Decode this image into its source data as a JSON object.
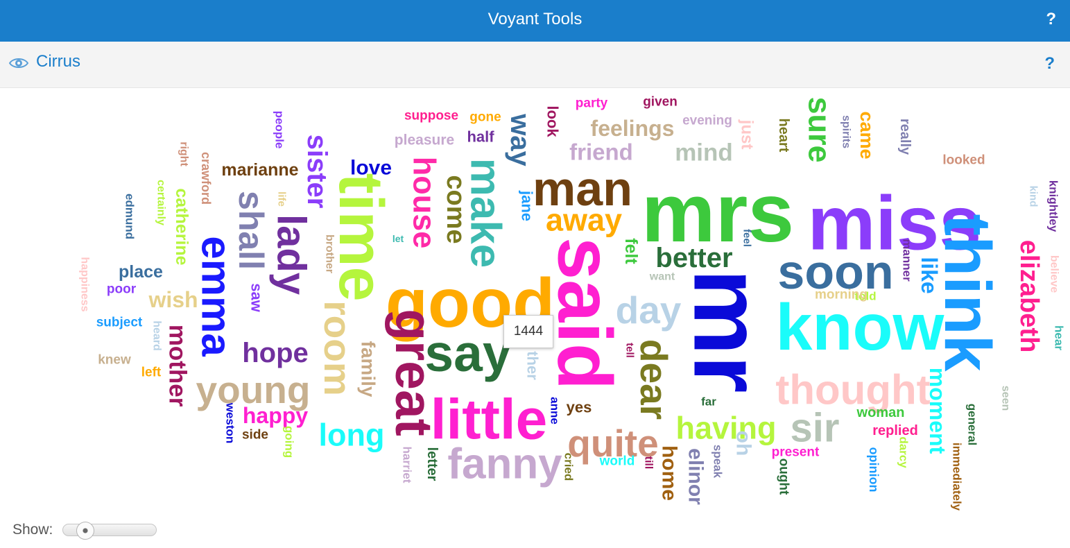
{
  "app": {
    "title": "Voyant Tools",
    "help": "?"
  },
  "panel": {
    "title": "Cirrus",
    "help": "?",
    "icon": "eye-icon"
  },
  "tooltip": "1444",
  "controls": {
    "show_label": "Show:"
  },
  "colors": {
    "header_bg": "#1a7ecb",
    "panel_bg": "#f4f4f4",
    "accent": "#1a7ecb"
  },
  "words": [
    {
      "text": "mrs",
      "color": "#3dc93d"
    },
    {
      "text": "miss",
      "color": "#8b3dfa"
    },
    {
      "text": "mr",
      "color": "#0a0ad8"
    },
    {
      "text": "said",
      "color": "#ff1fd0"
    },
    {
      "text": "good",
      "color": "#ffaa00"
    },
    {
      "text": "know",
      "color": "#1afcfa"
    },
    {
      "text": "think",
      "color": "#1a9cff"
    },
    {
      "text": "soon",
      "color": "#3a6e9e"
    },
    {
      "text": "man",
      "color": "#6e4010"
    },
    {
      "text": "time",
      "color": "#b5f53d"
    },
    {
      "text": "little",
      "color": "#ff1fd0"
    },
    {
      "text": "say",
      "color": "#2a6e3a"
    },
    {
      "text": "great",
      "color": "#a01660"
    },
    {
      "text": "make",
      "color": "#3dbab0"
    },
    {
      "text": "thought",
      "color": "#ffc7c7"
    },
    {
      "text": "fanny",
      "color": "#c6a8cf"
    },
    {
      "text": "emma",
      "color": "#1a1aff"
    },
    {
      "text": "lady",
      "color": "#70309e"
    },
    {
      "text": "shall",
      "color": "#8080b0"
    },
    {
      "text": "young",
      "color": "#c7b08f"
    },
    {
      "text": "room",
      "color": "#e6d08a"
    },
    {
      "text": "quite",
      "color": "#cf9079"
    },
    {
      "text": "dear",
      "color": "#7a7a20"
    },
    {
      "text": "day",
      "color": "#b8d2e6"
    },
    {
      "text": "house",
      "color": "#ff2aa8"
    },
    {
      "text": "away",
      "color": "#ffaa00"
    },
    {
      "text": "better",
      "color": "#2a6e3a"
    },
    {
      "text": "sir",
      "color": "#b6c4b6"
    },
    {
      "text": "having",
      "color": "#b5f53d"
    },
    {
      "text": "long",
      "color": "#1afcfa"
    },
    {
      "text": "elizabeth",
      "color": "#ff1f8f"
    },
    {
      "text": "moment",
      "color": "#1afcfa"
    },
    {
      "text": "like",
      "color": "#1a9cff"
    },
    {
      "text": "sure",
      "color": "#3dc93d"
    },
    {
      "text": "come",
      "color": "#7a7a20"
    },
    {
      "text": "way",
      "color": "#3a6e9e"
    },
    {
      "text": "sister",
      "color": "#8b3dfa"
    },
    {
      "text": "hope",
      "color": "#70309e"
    },
    {
      "text": "mother",
      "color": "#a01660"
    },
    {
      "text": "happy",
      "color": "#ff1fd0"
    },
    {
      "text": "family",
      "color": "#c7a884"
    },
    {
      "text": "feelings",
      "color": "#c7b08f"
    },
    {
      "text": "friend",
      "color": "#c6a8cf"
    },
    {
      "text": "mind",
      "color": "#b6c4b6"
    },
    {
      "text": "came",
      "color": "#ffaa00"
    },
    {
      "text": "home",
      "color": "#a06010"
    },
    {
      "text": "elinor",
      "color": "#8080b0"
    },
    {
      "text": "oh",
      "color": "#b8d2e6"
    },
    {
      "text": "catherine",
      "color": "#b5f53d"
    },
    {
      "text": "marianne",
      "color": "#6e4010"
    },
    {
      "text": "place",
      "color": "#3a6e9e"
    },
    {
      "text": "wish",
      "color": "#e6d08a"
    },
    {
      "text": "love",
      "color": "#0a0ad8"
    },
    {
      "text": "felt",
      "color": "#3dc93d"
    },
    {
      "text": "jane",
      "color": "#1a9cff"
    },
    {
      "text": "half",
      "color": "#70309e"
    },
    {
      "text": "gone",
      "color": "#ffaa00"
    },
    {
      "text": "suppose",
      "color": "#ff1f8f"
    },
    {
      "text": "pleasure",
      "color": "#c6a8cf"
    },
    {
      "text": "look",
      "color": "#a01660"
    },
    {
      "text": "party",
      "color": "#ff1fd0"
    },
    {
      "text": "given",
      "color": "#a01660"
    },
    {
      "text": "evening",
      "color": "#c6a8cf"
    },
    {
      "text": "just",
      "color": "#ffc7c7"
    },
    {
      "text": "heart",
      "color": "#7a7a20"
    },
    {
      "text": "spirits",
      "color": "#8080b0"
    },
    {
      "text": "really",
      "color": "#8080b0"
    },
    {
      "text": "looked",
      "color": "#cf9079"
    },
    {
      "text": "knightley",
      "color": "#70309e"
    },
    {
      "text": "kind",
      "color": "#b8d2e6"
    },
    {
      "text": "believe",
      "color": "#ffc7c7"
    },
    {
      "text": "hear",
      "color": "#3dbab0"
    },
    {
      "text": "seen",
      "color": "#b6c4b6"
    },
    {
      "text": "general",
      "color": "#2a6e3a"
    },
    {
      "text": "immediately",
      "color": "#a06010"
    },
    {
      "text": "replied",
      "color": "#ff1f8f"
    },
    {
      "text": "woman",
      "color": "#3dc93d"
    },
    {
      "text": "told",
      "color": "#b5f53d"
    },
    {
      "text": "morning",
      "color": "#e6d08a"
    },
    {
      "text": "manner",
      "color": "#70309e"
    },
    {
      "text": "present",
      "color": "#ff1fd0"
    },
    {
      "text": "ought",
      "color": "#2a6e3a"
    },
    {
      "text": "opinion",
      "color": "#1a9cff"
    },
    {
      "text": "darcy",
      "color": "#b5f53d"
    },
    {
      "text": "speak",
      "color": "#8080b0"
    },
    {
      "text": "far",
      "color": "#2a6e3a"
    },
    {
      "text": "world",
      "color": "#1afcfa"
    },
    {
      "text": "till",
      "color": "#a01660"
    },
    {
      "text": "cried",
      "color": "#7a7a20"
    },
    {
      "text": "yes",
      "color": "#6e4010"
    },
    {
      "text": "anne",
      "color": "#0a0ad8"
    },
    {
      "text": "tell",
      "color": "#a01660"
    },
    {
      "text": "feel",
      "color": "#3a6e9e"
    },
    {
      "text": "want",
      "color": "#b6c4b6"
    },
    {
      "text": "let",
      "color": "#3dbab0"
    },
    {
      "text": "brother",
      "color": "#c7a884"
    },
    {
      "text": "saw",
      "color": "#8b3dfa"
    },
    {
      "text": "life",
      "color": "#e6d08a"
    },
    {
      "text": "people",
      "color": "#8b3dfa"
    },
    {
      "text": "right",
      "color": "#cf9079"
    },
    {
      "text": "crawford",
      "color": "#cf9079"
    },
    {
      "text": "certainly",
      "color": "#b5f53d"
    },
    {
      "text": "edmund",
      "color": "#3a6e9e"
    },
    {
      "text": "happiness",
      "color": "#ffc7c7"
    },
    {
      "text": "poor",
      "color": "#8b3dfa"
    },
    {
      "text": "subject",
      "color": "#1a9cff"
    },
    {
      "text": "heard",
      "color": "#b8d2e6"
    },
    {
      "text": "knew",
      "color": "#c7b08f"
    },
    {
      "text": "left",
      "color": "#ffaa00"
    },
    {
      "text": "weston",
      "color": "#0a0ad8"
    },
    {
      "text": "side",
      "color": "#6e4010"
    },
    {
      "text": "going",
      "color": "#b5f53d"
    },
    {
      "text": "letter",
      "color": "#2a6e3a"
    },
    {
      "text": "harriet",
      "color": "#c6a8cf"
    },
    {
      "text": "ther",
      "color": "#b8d2e6"
    }
  ]
}
